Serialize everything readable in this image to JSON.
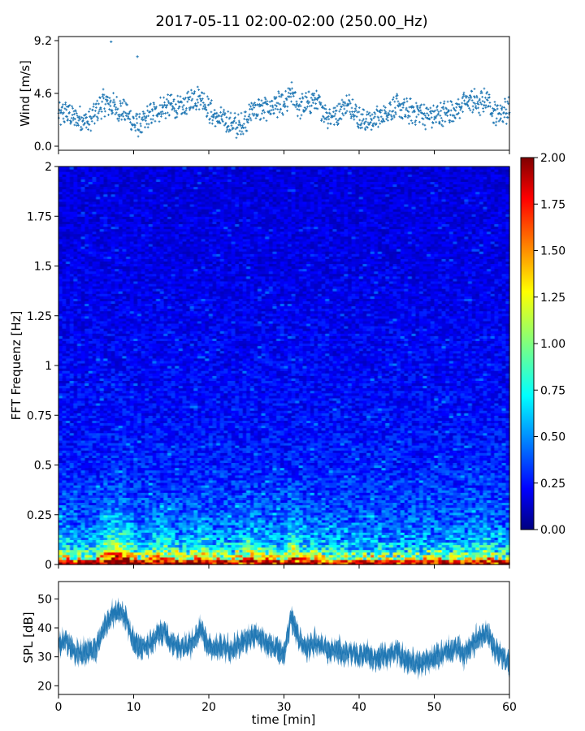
{
  "title": "2017-05-11 02:00-02:00 (250.00_Hz)",
  "chart_data": [
    {
      "id": "wind",
      "type": "scatter",
      "ylabel": "Wind [m/s]",
      "xlabel": "",
      "xlim": [
        0,
        60
      ],
      "ylim": [
        0,
        9.2
      ],
      "yticks": [
        "0.0",
        "4.6",
        "9.2"
      ],
      "ytick_values": [
        0,
        4.6,
        9.2
      ],
      "xticks": [
        0,
        10,
        20,
        30,
        40,
        50,
        60
      ],
      "grid": false,
      "color": "#1f77b4",
      "marker": "+",
      "x": [
        0,
        1,
        2,
        3,
        4,
        5,
        6,
        7,
        8,
        9,
        10,
        11,
        12,
        13,
        14,
        15,
        16,
        17,
        18,
        19,
        20,
        21,
        22,
        23,
        24,
        25,
        26,
        27,
        28,
        29,
        30,
        31,
        32,
        33,
        34,
        35,
        36,
        37,
        38,
        39,
        40,
        41,
        42,
        43,
        44,
        45,
        46,
        47,
        48,
        49,
        50,
        51,
        52,
        53,
        54,
        55,
        56,
        57,
        58,
        59,
        60
      ],
      "y": [
        2.6,
        3.0,
        2.5,
        2.4,
        2.1,
        3.0,
        3.8,
        3.6,
        3.2,
        3.0,
        2.0,
        1.8,
        2.6,
        3.0,
        3.4,
        3.5,
        3.2,
        3.6,
        4.2,
        4.3,
        3.2,
        2.4,
        2.3,
        2.0,
        1.6,
        2.4,
        3.3,
        3.2,
        3.3,
        3.7,
        3.4,
        4.6,
        3.4,
        3.6,
        4.1,
        3.3,
        2.6,
        2.8,
        3.5,
        3.6,
        2.4,
        2.2,
        2.3,
        2.6,
        3.2,
        3.4,
        3.1,
        3.0,
        3.0,
        2.6,
        2.6,
        2.8,
        3.0,
        3.2,
        3.8,
        4.0,
        3.6,
        4.2,
        2.8,
        3.0,
        3.2
      ],
      "outliers": [
        [
          7,
          9.1
        ],
        [
          10.5,
          7.8
        ]
      ]
    },
    {
      "id": "spectrogram",
      "type": "heatmap",
      "ylabel": "FFT Frequenz [Hz]",
      "xlabel": "",
      "xlim": [
        0,
        60
      ],
      "ylim": [
        0,
        2
      ],
      "yticks": [
        "0",
        "0.25",
        "0.5",
        "0.75",
        "1",
        "1.25",
        "1.5",
        "1.75",
        "2"
      ],
      "ytick_values": [
        0,
        0.25,
        0.5,
        0.75,
        1,
        1.25,
        1.5,
        1.75,
        2
      ],
      "colormap": "jet",
      "colorbar": {
        "range": [
          0,
          2
        ],
        "ticks": [
          "0.00",
          "0.25",
          "0.50",
          "0.75",
          "1.00",
          "1.25",
          "1.50",
          "1.75",
          "2.00"
        ],
        "tick_values": [
          0,
          0.25,
          0.5,
          0.75,
          1,
          1.25,
          1.5,
          1.75,
          2
        ],
        "colors": [
          "#00007f",
          "#0000ff",
          "#007fff",
          "#00ffff",
          "#7fff7f",
          "#ffff00",
          "#ff7f00",
          "#ff0000",
          "#7f0000"
        ]
      },
      "frequency_profile": {
        "freq_hz": [
          0,
          0.02,
          0.05,
          0.08,
          0.12,
          0.2,
          0.3,
          0.5,
          0.75,
          1.0,
          1.5,
          2.0
        ],
        "typical_value": [
          1.9,
          1.3,
          0.9,
          0.7,
          0.55,
          0.45,
          0.38,
          0.3,
          0.26,
          0.24,
          0.2,
          0.18
        ]
      }
    },
    {
      "id": "spl",
      "type": "line",
      "ylabel": "SPL [dB]",
      "xlabel": "time [min]",
      "xlim": [
        0,
        60
      ],
      "ylim": [
        17,
        56
      ],
      "yticks": [
        "20",
        "30",
        "40",
        "50"
      ],
      "ytick_values": [
        20,
        30,
        40,
        50
      ],
      "xticks": [
        "0",
        "10",
        "20",
        "30",
        "40",
        "50",
        "60"
      ],
      "xtick_values": [
        0,
        10,
        20,
        30,
        40,
        50,
        60
      ],
      "grid": false,
      "color": "#1f77b4",
      "x": [
        0,
        1,
        2,
        3,
        4,
        5,
        6,
        7,
        8,
        9,
        10,
        11,
        12,
        13,
        14,
        15,
        16,
        17,
        18,
        19,
        20,
        21,
        22,
        23,
        24,
        25,
        26,
        27,
        28,
        29,
        30,
        31,
        32,
        33,
        34,
        35,
        36,
        37,
        38,
        39,
        40,
        41,
        42,
        43,
        44,
        45,
        46,
        47,
        48,
        49,
        50,
        51,
        52,
        53,
        54,
        55,
        56,
        57,
        58,
        59,
        60
      ],
      "y": [
        34,
        36,
        32,
        31,
        32,
        33,
        40,
        44,
        46,
        43,
        35,
        33,
        34,
        37,
        39,
        35,
        33,
        34,
        35,
        40,
        33,
        33,
        34,
        32,
        34,
        36,
        38,
        36,
        34,
        33,
        31,
        44,
        36,
        33,
        35,
        34,
        32,
        33,
        31,
        32,
        30,
        31,
        29,
        30,
        31,
        32,
        29,
        28,
        28,
        29,
        30,
        31,
        32,
        33,
        31,
        34,
        37,
        38,
        33,
        30,
        28
      ],
      "band": 3
    }
  ],
  "colors": {
    "axes": "#000000",
    "series": "#1f77b4",
    "background": "#ffffff"
  }
}
